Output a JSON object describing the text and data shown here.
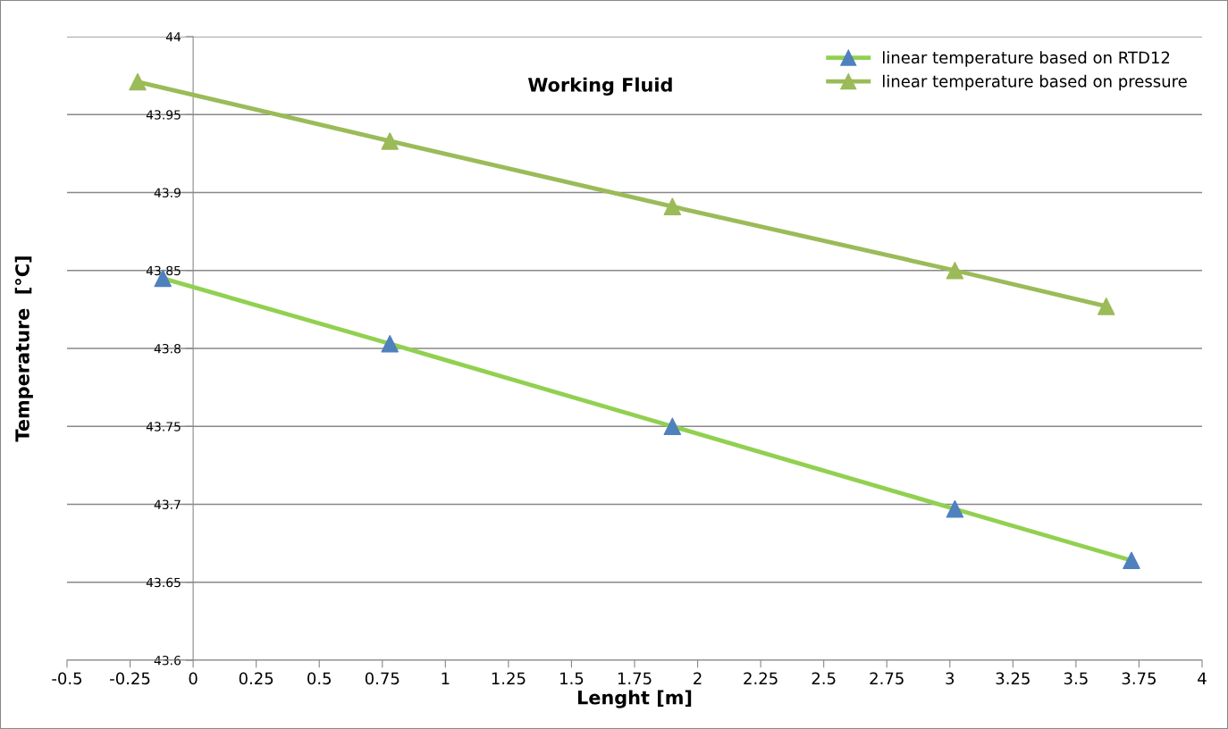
{
  "chart_data": {
    "type": "line",
    "title": "Working Fluid",
    "xlabel": "Lenght [m]",
    "ylabel": "Temperature  [°C]",
    "xlim": [
      -0.5,
      4
    ],
    "xticks": [
      -0.5,
      -0.25,
      0,
      0.25,
      0.5,
      0.75,
      1,
      1.25,
      1.5,
      1.75,
      2,
      2.25,
      2.5,
      2.75,
      3,
      3.25,
      3.5,
      3.75,
      4
    ],
    "ylim": [
      43.6,
      44
    ],
    "yticks": [
      43.6,
      43.65,
      43.7,
      43.75,
      43.8,
      43.85,
      43.9,
      43.95,
      44
    ],
    "grid": "y",
    "legend": "top right",
    "marker": "triangle",
    "line_style": "solid",
    "series": [
      {
        "name": "linear temperature based on RTD12",
        "color": "#92d050",
        "colors": [
          "#4f81bd",
          "#4f81bd",
          "#4f81bd",
          "#4f81bd",
          "#4f81bd"
        ],
        "x": [
          -0.12,
          0.78,
          1.9,
          3.02,
          3.72
        ],
        "values": [
          43.845,
          43.803,
          43.75,
          43.697,
          43.664
        ]
      },
      {
        "name": "linear temperature based on pressure",
        "color": "#9bbb59",
        "colors": [
          "#9bbb59",
          "#9bbb59",
          "#9bbb59",
          "#9bbb59",
          "#9bbb59"
        ],
        "x": [
          -0.22,
          0.78,
          1.9,
          3.02,
          3.62
        ],
        "values": [
          43.971,
          43.933,
          43.891,
          43.85,
          43.827
        ]
      }
    ]
  }
}
